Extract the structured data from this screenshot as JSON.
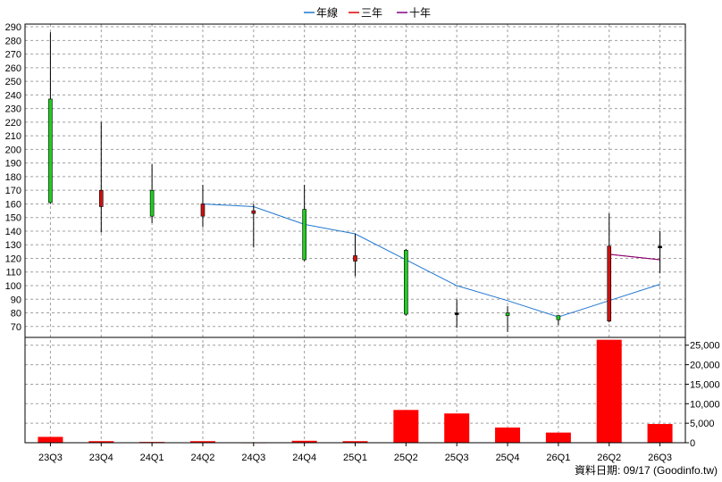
{
  "chart_data": {
    "type": "candlestick",
    "categories": [
      "23Q3",
      "23Q4",
      "24Q1",
      "24Q2",
      "24Q3",
      "24Q4",
      "25Q1",
      "25Q2",
      "25Q3",
      "25Q4",
      "26Q1",
      "26Q2",
      "26Q3"
    ],
    "candles": [
      {
        "open": 161,
        "close": 237,
        "high": 286,
        "low": 160
      },
      {
        "open": 170,
        "close": 158,
        "high": 220,
        "low": 139
      },
      {
        "open": 151,
        "close": 170,
        "high": 189,
        "low": 146
      },
      {
        "open": 160,
        "close": 151,
        "high": 174,
        "low": 143
      },
      {
        "open": 155,
        "close": 153,
        "high": 160,
        "low": 128
      },
      {
        "open": 119,
        "close": 156,
        "high": 174,
        "low": 118
      },
      {
        "open": 122,
        "close": 118,
        "high": 138,
        "low": 107
      },
      {
        "open": 79,
        "close": 126,
        "high": 127,
        "low": 78
      },
      {
        "open": 80,
        "close": 80,
        "high": 90,
        "low": 69
      },
      {
        "open": 78,
        "close": 80,
        "high": 85,
        "low": 66
      },
      {
        "open": 75,
        "close": 78,
        "high": 78,
        "low": 71
      },
      {
        "open": 129,
        "close": 74,
        "high": 153,
        "low": 73
      },
      {
        "open": 129,
        "close": 129,
        "high": 140,
        "low": 109
      }
    ],
    "series": [
      {
        "name": "年線",
        "color": "#1f77d0",
        "values": [
          null,
          null,
          null,
          160,
          158,
          145,
          138,
          119,
          100,
          89,
          77,
          89,
          101
        ]
      },
      {
        "name": "三年",
        "color": "#e00000",
        "values": [
          null,
          null,
          null,
          null,
          null,
          null,
          null,
          null,
          null,
          null,
          null,
          123,
          119
        ]
      },
      {
        "name": "十年",
        "color": "#800080",
        "values": [
          null,
          null,
          null,
          null,
          null,
          null,
          null,
          null,
          null,
          null,
          null,
          123,
          119
        ]
      }
    ],
    "volume": {
      "values": [
        1500,
        400,
        200,
        400,
        100,
        500,
        400,
        8400,
        7500,
        3900,
        2600,
        26400,
        4800
      ],
      "color": "#ff0000",
      "ylim": [
        0,
        27000
      ],
      "ticks": [
        "0",
        "5,000",
        "10,000",
        "15,000",
        "20,000",
        "25,000"
      ],
      "tick_values": [
        0,
        5000,
        10000,
        15000,
        20000,
        25000
      ]
    },
    "price_ylim": [
      62,
      292
    ],
    "price_ticks": [
      70,
      80,
      90,
      100,
      110,
      120,
      130,
      140,
      150,
      160,
      170,
      180,
      190,
      200,
      210,
      220,
      230,
      240,
      250,
      260,
      270,
      280,
      290
    ],
    "up_color": "#22cc22",
    "down_color": "#cc1111",
    "grid": true,
    "legend_position": "top-center"
  },
  "source_note": "資料日期: 09/17  (Goodinfo.tw)"
}
